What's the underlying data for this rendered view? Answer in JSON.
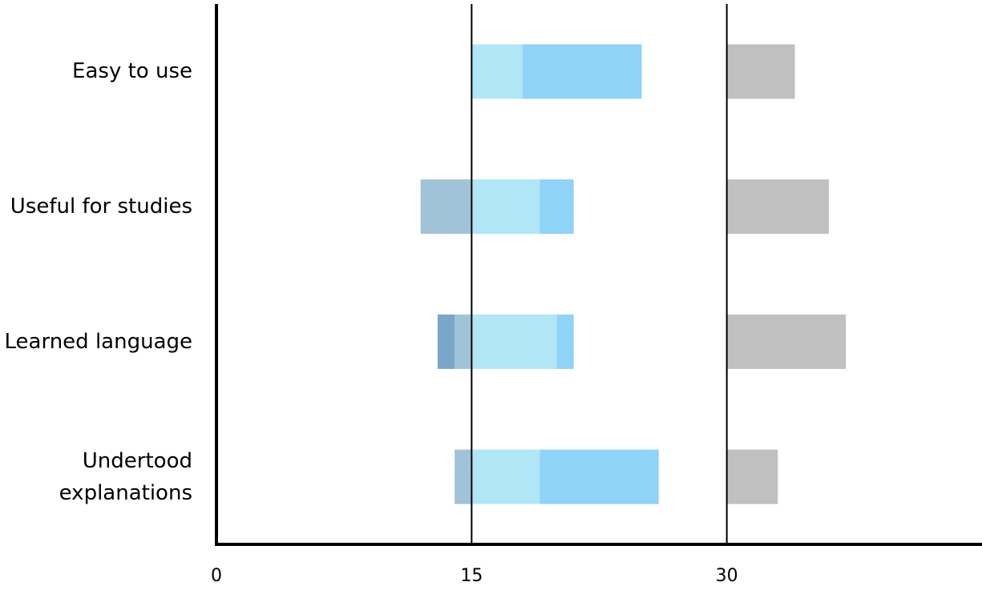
{
  "chart_data": {
    "type": "diverging_bar",
    "categories": [
      "Easy to use",
      "Useful for studies",
      "Learned language",
      "Undertood explanations"
    ],
    "series": [
      {
        "color": "#a0c3d7",
        "side": "left",
        "values": [
          0,
          3,
          1,
          1
        ]
      },
      {
        "color": "#7aa6c9",
        "side": "left",
        "values": [
          0,
          0,
          1,
          0
        ]
      },
      {
        "color": "#b0e6f6",
        "side": "right",
        "values": [
          3,
          4,
          5,
          4
        ]
      },
      {
        "color": "#8fd3f8",
        "side": "right",
        "values": [
          7,
          2,
          1,
          7
        ]
      },
      {
        "color": "#c0c0c0",
        "side": "separate",
        "values": [
          4,
          6,
          7,
          3
        ]
      }
    ],
    "xlim": [
      0,
      45
    ],
    "xticks": [
      0,
      15,
      30
    ],
    "grid": true
  }
}
